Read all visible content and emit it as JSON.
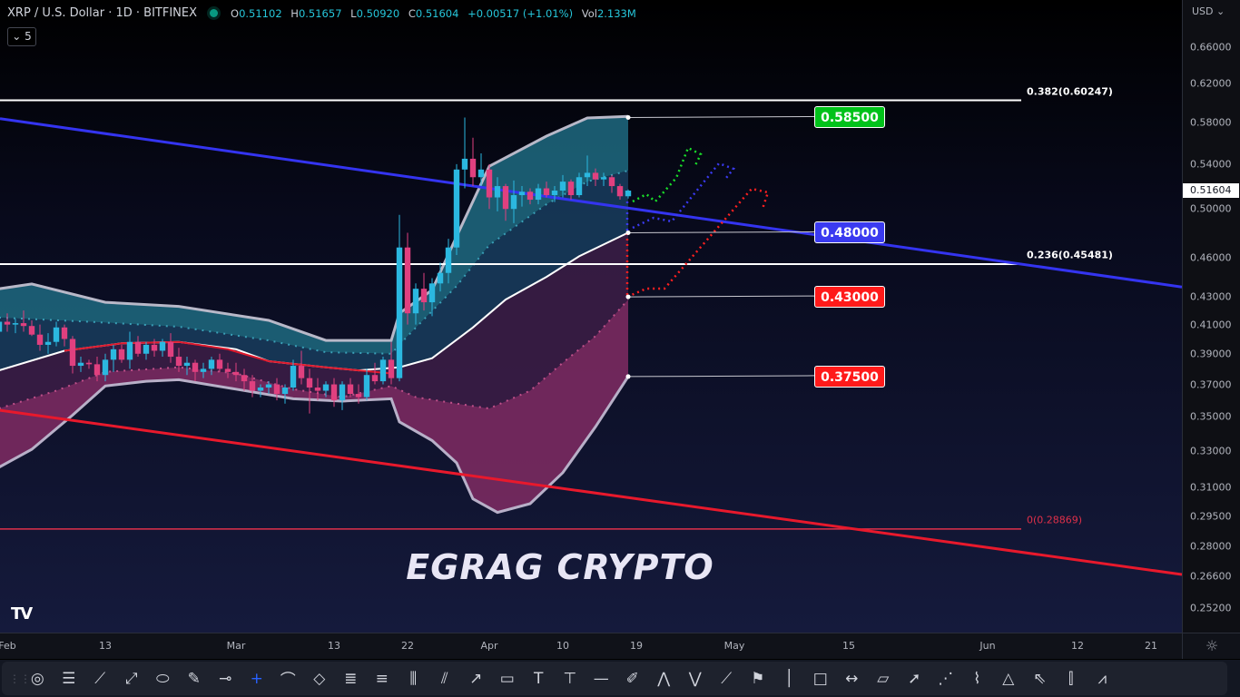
{
  "header": {
    "title": "XRP / U.S. Dollar · 1D · BITFINEX",
    "status_color": "#089981",
    "ohlc": [
      {
        "label": "O",
        "value": "0.51102"
      },
      {
        "label": "H",
        "value": "0.51657"
      },
      {
        "label": "L",
        "value": "0.50920"
      },
      {
        "label": "C",
        "value": "0.51604"
      }
    ],
    "change": "+0.00517 (+1.01%)",
    "vol_label": "Vol",
    "vol_value": "2.133M",
    "indicators_count": "5"
  },
  "price_axis": {
    "currency": "USD",
    "last_price": "0.51604",
    "scale": "log",
    "ticks": [
      "0.66000",
      "0.62000",
      "0.58000",
      "0.54000",
      "0.50000",
      "0.46000",
      "0.43000",
      "0.41000",
      "0.39000",
      "0.37000",
      "0.35000",
      "0.33000",
      "0.31000",
      "0.29500",
      "0.28000",
      "0.26600",
      "0.25200"
    ]
  },
  "time_axis": {
    "ticks": [
      {
        "label": "Feb",
        "date": "2023-02-01"
      },
      {
        "label": "13",
        "date": "2023-02-13"
      },
      {
        "label": "Mar",
        "date": "2023-03-01"
      },
      {
        "label": "13",
        "date": "2023-03-13"
      },
      {
        "label": "22",
        "date": "2023-03-22"
      },
      {
        "label": "Apr",
        "date": "2023-04-01"
      },
      {
        "label": "10",
        "date": "2023-04-10"
      },
      {
        "label": "19",
        "date": "2023-04-19"
      },
      {
        "label": "May",
        "date": "2023-05-01"
      },
      {
        "label": "15",
        "date": "2023-05-15"
      },
      {
        "label": "Jun",
        "date": "2023-06-01"
      },
      {
        "label": "12",
        "date": "2023-06-12"
      },
      {
        "label": "21",
        "date": "2023-06-21"
      }
    ]
  },
  "chart_data": {
    "type": "candlestick",
    "symbol": "XRP / U.S. Dollar",
    "interval": "1D",
    "yscale": "log",
    "ylim": [
      0.245,
      0.72
    ],
    "colors": {
      "up": "#2bb8e0",
      "down": "#e0407f"
    },
    "start_date": "2023-01-31",
    "candles_ohlc": [
      [
        0.405,
        0.415,
        0.398,
        0.412
      ],
      [
        0.412,
        0.418,
        0.405,
        0.41
      ],
      [
        0.41,
        0.414,
        0.404,
        0.411
      ],
      [
        0.411,
        0.42,
        0.405,
        0.409
      ],
      [
        0.409,
        0.413,
        0.402,
        0.403
      ],
      [
        0.403,
        0.41,
        0.392,
        0.396
      ],
      [
        0.396,
        0.404,
        0.39,
        0.398
      ],
      [
        0.398,
        0.412,
        0.395,
        0.408
      ],
      [
        0.408,
        0.41,
        0.395,
        0.4
      ],
      [
        0.4,
        0.402,
        0.377,
        0.382
      ],
      [
        0.382,
        0.388,
        0.378,
        0.384
      ],
      [
        0.384,
        0.386,
        0.38,
        0.383
      ],
      [
        0.383,
        0.388,
        0.372,
        0.376
      ],
      [
        0.376,
        0.39,
        0.372,
        0.386
      ],
      [
        0.386,
        0.396,
        0.378,
        0.393
      ],
      [
        0.393,
        0.396,
        0.384,
        0.386
      ],
      [
        0.386,
        0.405,
        0.38,
        0.398
      ],
      [
        0.398,
        0.402,
        0.388,
        0.39
      ],
      [
        0.39,
        0.398,
        0.386,
        0.396
      ],
      [
        0.396,
        0.4,
        0.388,
        0.392
      ],
      [
        0.392,
        0.4,
        0.388,
        0.398
      ],
      [
        0.398,
        0.404,
        0.384,
        0.388
      ],
      [
        0.388,
        0.394,
        0.378,
        0.382
      ],
      [
        0.382,
        0.388,
        0.376,
        0.384
      ],
      [
        0.384,
        0.386,
        0.372,
        0.378
      ],
      [
        0.378,
        0.384,
        0.374,
        0.38
      ],
      [
        0.38,
        0.388,
        0.376,
        0.386
      ],
      [
        0.386,
        0.39,
        0.378,
        0.38
      ],
      [
        0.38,
        0.384,
        0.374,
        0.378
      ],
      [
        0.378,
        0.384,
        0.372,
        0.376
      ],
      [
        0.376,
        0.38,
        0.366,
        0.372
      ],
      [
        0.372,
        0.376,
        0.362,
        0.366
      ],
      [
        0.366,
        0.37,
        0.362,
        0.368
      ],
      [
        0.368,
        0.372,
        0.364,
        0.37
      ],
      [
        0.37,
        0.374,
        0.36,
        0.364
      ],
      [
        0.364,
        0.37,
        0.358,
        0.368
      ],
      [
        0.368,
        0.386,
        0.366,
        0.382
      ],
      [
        0.382,
        0.392,
        0.37,
        0.374
      ],
      [
        0.374,
        0.38,
        0.352,
        0.368
      ],
      [
        0.368,
        0.374,
        0.36,
        0.366
      ],
      [
        0.366,
        0.372,
        0.362,
        0.37
      ],
      [
        0.37,
        0.374,
        0.356,
        0.36
      ],
      [
        0.36,
        0.372,
        0.354,
        0.37
      ],
      [
        0.37,
        0.374,
        0.362,
        0.364
      ],
      [
        0.364,
        0.37,
        0.358,
        0.362
      ],
      [
        0.362,
        0.38,
        0.36,
        0.376
      ],
      [
        0.376,
        0.384,
        0.37,
        0.372
      ],
      [
        0.372,
        0.388,
        0.37,
        0.386
      ],
      [
        0.386,
        0.398,
        0.37,
        0.374
      ],
      [
        0.374,
        0.495,
        0.372,
        0.468
      ],
      [
        0.468,
        0.48,
        0.41,
        0.418
      ],
      [
        0.418,
        0.44,
        0.41,
        0.436
      ],
      [
        0.436,
        0.448,
        0.42,
        0.426
      ],
      [
        0.426,
        0.444,
        0.416,
        0.44
      ],
      [
        0.44,
        0.456,
        0.434,
        0.448
      ],
      [
        0.448,
        0.475,
        0.44,
        0.468
      ],
      [
        0.468,
        0.54,
        0.462,
        0.535
      ],
      [
        0.535,
        0.585,
        0.518,
        0.545
      ],
      [
        0.545,
        0.565,
        0.52,
        0.528
      ],
      [
        0.528,
        0.55,
        0.52,
        0.535
      ],
      [
        0.535,
        0.54,
        0.5,
        0.51
      ],
      [
        0.51,
        0.528,
        0.498,
        0.52
      ],
      [
        0.52,
        0.522,
        0.49,
        0.5
      ],
      [
        0.5,
        0.525,
        0.488,
        0.512
      ],
      [
        0.512,
        0.52,
        0.502,
        0.515
      ],
      [
        0.515,
        0.518,
        0.504,
        0.508
      ],
      [
        0.508,
        0.522,
        0.504,
        0.518
      ],
      [
        0.518,
        0.524,
        0.51,
        0.512
      ],
      [
        0.512,
        0.52,
        0.506,
        0.516
      ],
      [
        0.516,
        0.53,
        0.51,
        0.524
      ],
      [
        0.524,
        0.526,
        0.508,
        0.512
      ],
      [
        0.512,
        0.532,
        0.51,
        0.528
      ],
      [
        0.528,
        0.548,
        0.52,
        0.532
      ],
      [
        0.532,
        0.536,
        0.52,
        0.526
      ],
      [
        0.526,
        0.532,
        0.52,
        0.528
      ],
      [
        0.528,
        0.53,
        0.514,
        0.52
      ],
      [
        0.52,
        0.522,
        0.508,
        0.511
      ],
      [
        0.511,
        0.517,
        0.509,
        0.516
      ]
    ],
    "bands": {
      "upper_outer": [
        [
          "2023-01-31",
          0.436
        ],
        [
          "2023-02-04",
          0.4396
        ],
        [
          "2023-02-13",
          0.426
        ],
        [
          "2023-02-22",
          0.423
        ],
        [
          "2023-03-05",
          0.413
        ],
        [
          "2023-03-12",
          0.399
        ],
        [
          "2023-03-20",
          0.399
        ],
        [
          "2023-03-21",
          0.418
        ],
        [
          "2023-03-25",
          0.435
        ],
        [
          "2023-03-28",
          0.477
        ],
        [
          "2023-04-01",
          0.538
        ],
        [
          "2023-04-08",
          0.5666
        ],
        [
          "2023-04-13",
          0.5845
        ],
        [
          "2023-04-18",
          0.586
        ]
      ],
      "upper_inner": [
        [
          "2023-01-31",
          0.415
        ],
        [
          "2023-02-11",
          0.412
        ],
        [
          "2023-02-22",
          0.4085
        ],
        [
          "2023-03-05",
          0.399
        ],
        [
          "2023-03-12",
          0.391
        ],
        [
          "2023-03-20",
          0.39
        ],
        [
          "2023-03-22",
          0.402
        ],
        [
          "2023-03-28",
          0.438
        ],
        [
          "2023-04-01",
          0.47
        ],
        [
          "2023-04-08",
          0.504
        ],
        [
          "2023-04-13",
          0.524
        ],
        [
          "2023-04-18",
          0.534
        ]
      ],
      "basis": [
        [
          "2023-01-31",
          0.379
        ],
        [
          "2023-02-08",
          0.392
        ],
        [
          "2023-02-15",
          0.397
        ],
        [
          "2023-02-22",
          0.398
        ],
        [
          "2023-03-01",
          0.393
        ],
        [
          "2023-03-05",
          0.385
        ],
        [
          "2023-03-12",
          0.381
        ],
        [
          "2023-03-16",
          0.379
        ],
        [
          "2023-03-21",
          0.381
        ],
        [
          "2023-03-25",
          0.387
        ],
        [
          "2023-03-30",
          0.408
        ],
        [
          "2023-04-03",
          0.428
        ],
        [
          "2023-04-08",
          0.445
        ],
        [
          "2023-04-12",
          0.461
        ],
        [
          "2023-04-18",
          0.48
        ]
      ],
      "moving_average": [
        [
          "2023-02-08",
          0.392
        ],
        [
          "2023-02-15",
          0.397
        ],
        [
          "2023-02-22",
          0.398
        ],
        [
          "2023-02-28",
          0.393
        ],
        [
          "2023-03-05",
          0.385
        ],
        [
          "2023-03-12",
          0.381
        ],
        [
          "2023-03-16",
          0.379
        ],
        [
          "2023-03-20",
          0.377
        ]
      ],
      "lower_inner": [
        [
          "2023-01-31",
          0.355
        ],
        [
          "2023-02-07",
          0.366
        ],
        [
          "2023-02-13",
          0.378
        ],
        [
          "2023-02-22",
          0.381
        ],
        [
          "2023-03-01",
          0.377
        ],
        [
          "2023-03-08",
          0.367
        ],
        [
          "2023-03-14",
          0.362
        ],
        [
          "2023-03-20",
          0.369
        ],
        [
          "2023-03-23",
          0.362
        ],
        [
          "2023-03-28",
          0.358
        ],
        [
          "2023-04-01",
          0.355
        ],
        [
          "2023-04-06",
          0.366
        ],
        [
          "2023-04-10",
          0.384
        ],
        [
          "2023-04-14",
          0.402
        ],
        [
          "2023-04-18",
          0.428
        ]
      ],
      "lower_outer": [
        [
          "2023-01-31",
          0.321
        ],
        [
          "2023-02-04",
          0.331
        ],
        [
          "2023-02-09",
          0.351
        ],
        [
          "2023-02-13",
          0.369
        ],
        [
          "2023-02-18",
          0.372
        ],
        [
          "2023-02-22",
          0.373
        ],
        [
          "2023-03-01",
          0.367
        ],
        [
          "2023-03-08",
          0.361
        ],
        [
          "2023-03-14",
          0.3595
        ],
        [
          "2023-03-20",
          0.361
        ],
        [
          "2023-03-21",
          0.347
        ],
        [
          "2023-03-25",
          0.336
        ],
        [
          "2023-03-28",
          0.3234
        ],
        [
          "2023-03-30",
          0.304
        ],
        [
          "2023-04-02",
          0.297
        ],
        [
          "2023-04-06",
          0.3015
        ],
        [
          "2023-04-10",
          0.318
        ],
        [
          "2023-04-14",
          0.344
        ],
        [
          "2023-04-18",
          0.375
        ]
      ]
    },
    "trendlines": [
      {
        "color": "#3434f0",
        "from": [
          "2023-01-31",
          0.584
        ],
        "to": [
          "2023-06-24",
          0.438
        ]
      },
      {
        "color": "#e8192c",
        "from": [
          "2023-01-31",
          0.354
        ],
        "to": [
          "2023-06-24",
          0.2674
        ]
      }
    ],
    "fib_levels": [
      {
        "label": "0.382(0.60247)",
        "price": 0.60247,
        "color": "#ffffff"
      },
      {
        "label": "0.236(0.45481)",
        "price": 0.45481,
        "color": "#ffffff"
      },
      {
        "label": "0(0.28869)",
        "price": 0.28869,
        "color": "#e0304a"
      }
    ],
    "targets": [
      {
        "label": "0.58500",
        "price": 0.585,
        "color": "#00c21a"
      },
      {
        "label": "0.48000",
        "price": 0.48,
        "color": "#3a3af0"
      },
      {
        "label": "0.43000",
        "price": 0.43,
        "color": "#ff1a1a"
      },
      {
        "label": "0.37500",
        "price": 0.375,
        "color": "#ff1a1a"
      }
    ]
  },
  "watermark": "EGRAG CRYPTO",
  "logo": "TV",
  "toolbar": {
    "tools": [
      "fib-spiral",
      "fib-retracement",
      "trend-line",
      "extended-line",
      "ellipse",
      "brush",
      "horizontal-ray",
      "crosshair",
      "path",
      "rotated-rectangle",
      "fib-channel",
      "fib-time-zone",
      "bars-pattern",
      "parallel-channel",
      "arrow",
      "callout",
      "text",
      "price-range",
      "horizontal-line",
      "highlighter",
      "elliott-impulse",
      "elliott-correction",
      "info-line",
      "flag",
      "vertical-line",
      "rectangle",
      "date-range",
      "polyline",
      "arrow-marker",
      "pitchfan",
      "xabcd",
      "triangle",
      "cursor",
      "long-position",
      "head-shoulders"
    ],
    "active": "crosshair"
  }
}
